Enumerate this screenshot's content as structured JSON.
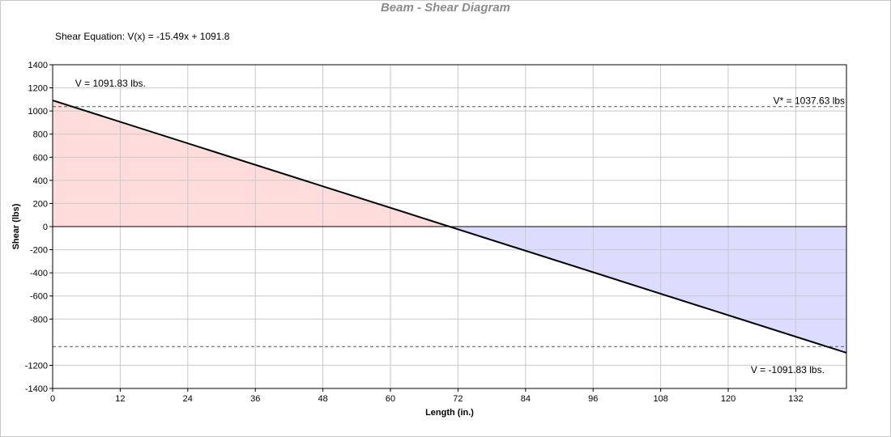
{
  "chart_data": {
    "type": "line",
    "title": "Beam - Shear Diagram",
    "equation_label": "Shear Equation:",
    "equation": "V(x) = -15.49x + 1091.8",
    "xlabel": "Length (in.)",
    "ylabel": "Shear (lbs)",
    "xlim": [
      0,
      141
    ],
    "ylim": [
      -1400,
      1400
    ],
    "x_ticks": [
      0,
      12,
      24,
      36,
      48,
      60,
      72,
      84,
      96,
      108,
      120,
      132
    ],
    "y_ticks": [
      -1400,
      -1200,
      -800,
      -600,
      -400,
      -200,
      0,
      200,
      400,
      600,
      800,
      1000,
      1200,
      1400
    ],
    "grid": true,
    "series": [
      {
        "x": [
          0,
          141
        ],
        "y": [
          1091.83,
          -1091.83
        ],
        "color": "#000000"
      }
    ],
    "fills": {
      "positive_color": "#ffdcdc",
      "negative_color": "#dcdcff"
    },
    "reference_lines": [
      {
        "y": 1037.63,
        "style": "dashed",
        "color": "#555555"
      },
      {
        "y": -1037.63,
        "style": "dashed",
        "color": "#555555"
      }
    ],
    "annotations": [
      {
        "text": "V = 1091.83 lbs.",
        "x": 4,
        "y": 1240
      },
      {
        "text": "V* = 1037.63 lbs",
        "x": 128,
        "y": 1090
      },
      {
        "text": "V = -1091.83 lbs.",
        "x": 124,
        "y": -1240
      }
    ]
  }
}
